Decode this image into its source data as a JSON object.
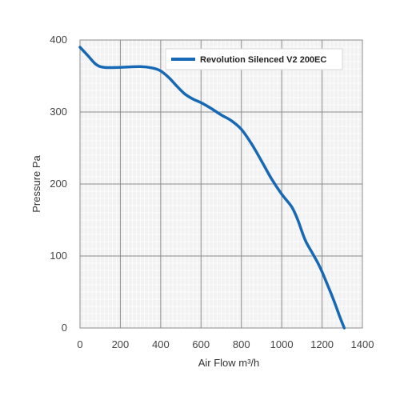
{
  "chart_data": {
    "type": "line",
    "xlabel": "Air Flow m³/h",
    "ylabel": "Pressure Pa",
    "xlim": [
      0,
      1400
    ],
    "ylim": [
      0,
      400
    ],
    "x_ticks": [
      0,
      200,
      400,
      600,
      800,
      1000,
      1200,
      1400
    ],
    "y_ticks": [
      0,
      100,
      200,
      300,
      400
    ],
    "x_tick_labels": [
      "0",
      "200",
      "400",
      "600",
      "800",
      "1000",
      "1200",
      "1400"
    ],
    "y_tick_labels": [
      "0",
      "100",
      "200",
      "300",
      "400"
    ],
    "grid": true,
    "minor_grid": true,
    "legend_position": "top-right",
    "series": [
      {
        "name": "Revolution Silenced V2 200EC",
        "color": "#1769b5",
        "x": [
          0,
          40,
          80,
          120,
          200,
          300,
          360,
          400,
          440,
          480,
          520,
          560,
          600,
          650,
          700,
          750,
          800,
          850,
          900,
          950,
          1000,
          1050,
          1080,
          1100,
          1120,
          1150,
          1180,
          1200,
          1230,
          1260,
          1290,
          1310
        ],
        "y": [
          390,
          378,
          366,
          362,
          362,
          363,
          361,
          357,
          348,
          336,
          325,
          318,
          313,
          305,
          296,
          288,
          276,
          256,
          232,
          207,
          186,
          168,
          150,
          134,
          120,
          105,
          90,
          78,
          58,
          37,
          14,
          0
        ]
      }
    ]
  }
}
